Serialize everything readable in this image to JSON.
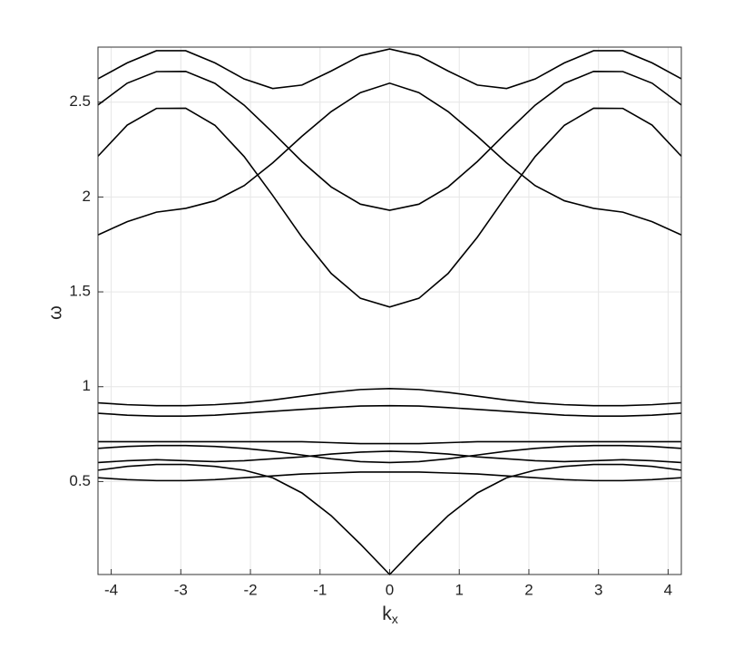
{
  "chart_data": {
    "type": "line",
    "xlabel": "k",
    "xlabel_subscript": "x",
    "ylabel": "ω",
    "x": [
      -4.19,
      -3.77,
      -3.35,
      -2.93,
      -2.51,
      -2.09,
      -1.68,
      -1.26,
      -0.84,
      -0.42,
      0,
      0.42,
      0.84,
      1.26,
      1.68,
      2.09,
      2.51,
      2.93,
      3.35,
      3.77,
      4.19
    ],
    "series": [
      {
        "color": "#000000",
        "values": [
          2.623,
          2.707,
          2.771,
          2.771,
          2.707,
          2.622,
          2.572,
          2.59,
          2.664,
          2.745,
          2.78,
          2.745,
          2.664,
          2.59,
          2.572,
          2.622,
          2.707,
          2.771,
          2.771,
          2.707,
          2.623
        ]
      },
      {
        "color": "#000000",
        "values": [
          2.485,
          2.6,
          2.661,
          2.662,
          2.599,
          2.484,
          2.34,
          2.187,
          2.053,
          1.962,
          1.93,
          1.962,
          2.053,
          2.187,
          2.34,
          2.484,
          2.599,
          2.662,
          2.661,
          2.6,
          2.485
        ]
      },
      {
        "color": "#000000",
        "values": [
          2.215,
          2.379,
          2.467,
          2.468,
          2.378,
          2.213,
          2.008,
          1.788,
          1.597,
          1.466,
          1.42,
          1.466,
          1.597,
          1.788,
          2.008,
          2.213,
          2.378,
          2.468,
          2.467,
          2.379,
          2.215
        ]
      },
      {
        "color": "#000000",
        "values": [
          1.8,
          1.87,
          1.92,
          1.94,
          1.98,
          2.06,
          2.18,
          2.32,
          2.45,
          2.55,
          2.6,
          2.55,
          2.45,
          2.32,
          2.18,
          2.06,
          1.98,
          1.94,
          1.92,
          1.87,
          1.8
        ]
      },
      {
        "color": "#000000",
        "values": [
          0.915,
          0.905,
          0.9,
          0.9,
          0.905,
          0.915,
          0.93,
          0.95,
          0.97,
          0.985,
          0.99,
          0.985,
          0.97,
          0.95,
          0.93,
          0.915,
          0.905,
          0.9,
          0.9,
          0.905,
          0.915
        ]
      },
      {
        "color": "#000000",
        "values": [
          0.86,
          0.85,
          0.845,
          0.845,
          0.85,
          0.86,
          0.87,
          0.88,
          0.89,
          0.898,
          0.9,
          0.898,
          0.89,
          0.88,
          0.87,
          0.86,
          0.85,
          0.845,
          0.845,
          0.85,
          0.86
        ]
      },
      {
        "color": "#000000",
        "values": [
          0.71,
          0.71,
          0.71,
          0.71,
          0.71,
          0.71,
          0.71,
          0.71,
          0.705,
          0.7,
          0.7,
          0.7,
          0.705,
          0.71,
          0.71,
          0.71,
          0.71,
          0.71,
          0.71,
          0.71,
          0.71
        ]
      },
      {
        "color": "#000000",
        "values": [
          0.675,
          0.685,
          0.69,
          0.69,
          0.685,
          0.675,
          0.66,
          0.64,
          0.62,
          0.605,
          0.6,
          0.605,
          0.62,
          0.64,
          0.66,
          0.675,
          0.685,
          0.69,
          0.69,
          0.685,
          0.675
        ]
      },
      {
        "color": "#000000",
        "values": [
          0.6,
          0.61,
          0.615,
          0.61,
          0.605,
          0.61,
          0.62,
          0.63,
          0.645,
          0.655,
          0.66,
          0.655,
          0.645,
          0.63,
          0.62,
          0.61,
          0.605,
          0.61,
          0.615,
          0.61,
          0.6
        ]
      },
      {
        "color": "#000000",
        "values": [
          0.52,
          0.51,
          0.505,
          0.505,
          0.51,
          0.52,
          0.53,
          0.54,
          0.545,
          0.55,
          0.55,
          0.55,
          0.545,
          0.54,
          0.53,
          0.52,
          0.51,
          0.505,
          0.505,
          0.51,
          0.52
        ]
      },
      {
        "color": "#000000",
        "values": [
          0.56,
          0.58,
          0.59,
          0.59,
          0.58,
          0.56,
          0.52,
          0.44,
          0.32,
          0.17,
          0.01,
          0.17,
          0.32,
          0.44,
          0.52,
          0.56,
          0.58,
          0.59,
          0.59,
          0.58,
          0.56
        ]
      }
    ],
    "xlim": [
      -4.19,
      4.19
    ],
    "ylim": [
      0.01,
      2.79
    ],
    "xticks": [
      -4,
      -3,
      -2,
      -1,
      0,
      1,
      2,
      3,
      4
    ],
    "yticks": [
      0.5,
      1,
      1.5,
      2,
      2.5
    ],
    "grid": true
  }
}
